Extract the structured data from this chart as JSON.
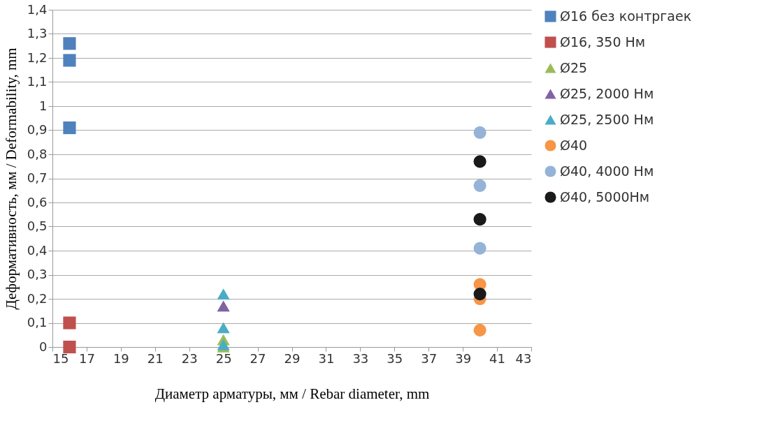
{
  "chart_data": {
    "type": "scatter",
    "xlabel": "Диаметр арматуры, мм / Rebar diameter, mm",
    "ylabel": "Деформативность, мм / Deformability, mm",
    "xlim": [
      15,
      43
    ],
    "xticks": [
      15,
      17,
      19,
      21,
      23,
      25,
      27,
      29,
      31,
      33,
      35,
      37,
      39,
      41,
      43
    ],
    "ylim": [
      0,
      1.4
    ],
    "yticks": [
      {
        "value": 0,
        "label": "0"
      },
      {
        "value": 0.1,
        "label": "0,1"
      },
      {
        "value": 0.2,
        "label": "0,2"
      },
      {
        "value": 0.3,
        "label": "0,3"
      },
      {
        "value": 0.4,
        "label": "0,4"
      },
      {
        "value": 0.5,
        "label": "0,5"
      },
      {
        "value": 0.6,
        "label": "0,6"
      },
      {
        "value": 0.7,
        "label": "0,7"
      },
      {
        "value": 0.8,
        "label": "0,8"
      },
      {
        "value": 0.9,
        "label": "0,9"
      },
      {
        "value": 1,
        "label": "1"
      },
      {
        "value": 1.1,
        "label": "1,1"
      },
      {
        "value": 1.2,
        "label": "1,2"
      },
      {
        "value": 1.3,
        "label": "1,3"
      },
      {
        "value": 1.4,
        "label": "1,4"
      }
    ],
    "grid": "y",
    "legend": "right",
    "series": [
      {
        "name": "Ø16 без контргаек",
        "color": "#4f81bd",
        "marker": "square",
        "x": [
          16,
          16,
          16
        ],
        "values": [
          1.26,
          1.19,
          0.91
        ]
      },
      {
        "name": "Ø16, 350 Нм",
        "color": "#c0504d",
        "marker": "square",
        "x": [
          16,
          16
        ],
        "values": [
          0.1,
          0
        ]
      },
      {
        "name": "Ø25",
        "color": "#9bbb59",
        "marker": "triangle",
        "x": [
          25,
          25
        ],
        "values": [
          0.03,
          0
        ]
      },
      {
        "name": "Ø25, 2000 Нм",
        "color": "#8064a2",
        "marker": "triangle",
        "x": [
          25
        ],
        "values": [
          0.17
        ]
      },
      {
        "name": "Ø25, 2500 Нм",
        "color": "#4bacc6",
        "marker": "triangle",
        "x": [
          25,
          25,
          25
        ],
        "values": [
          0.22,
          0.08,
          0.01
        ]
      },
      {
        "name": "Ø40",
        "color": "#f79646",
        "marker": "circle",
        "x": [
          40,
          40,
          40
        ],
        "values": [
          0.26,
          0.2,
          0.07
        ]
      },
      {
        "name": "Ø40, 4000 Нм",
        "color": "#95b3d7",
        "marker": "circle",
        "x": [
          40,
          40,
          40
        ],
        "values": [
          0.89,
          0.67,
          0.41
        ]
      },
      {
        "name": "Ø40, 5000Нм",
        "color": "#1a1a1a",
        "marker": "circle",
        "x": [
          40,
          40,
          40
        ],
        "values": [
          0.77,
          0.53,
          0.22
        ]
      }
    ]
  }
}
